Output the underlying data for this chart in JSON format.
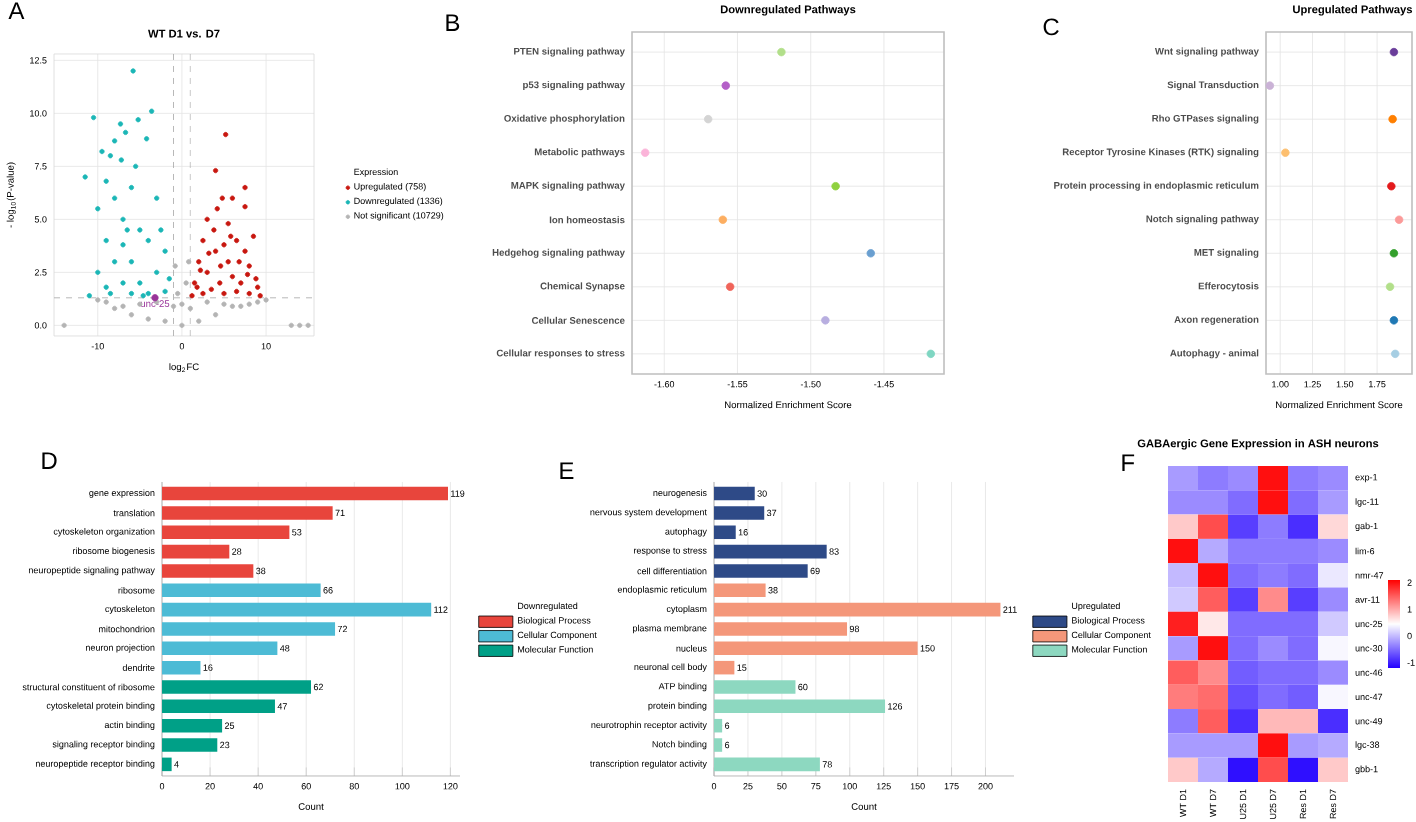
{
  "chart_data": [
    {
      "type": "scatter",
      "title": "WT D1 vs. D7",
      "xlabel": "log$_{2}$FC",
      "ylabel": "- log$_{10}$(P-value)",
      "legend_title": "Expression",
      "legend": "right",
      "marker": "circle",
      "grid": true,
      "xlim": [
        -15.2,
        15.7
      ],
      "ylim": [
        -0.5,
        12.8
      ],
      "xticks": [
        -10,
        0,
        10
      ],
      "yticks": [
        {
          "value": 0,
          "label": "0.0"
        },
        {
          "value": 2.5,
          "label": "2.5"
        },
        {
          "value": 5,
          "label": "5.0"
        },
        {
          "value": 7.5,
          "label": "7.5"
        },
        {
          "value": 10,
          "label": "10.0"
        },
        {
          "value": 12.5,
          "label": "12.5"
        }
      ],
      "ref_lines": [
        {
          "axis": "x",
          "value": -1,
          "line_style": "dashed"
        },
        {
          "axis": "x",
          "value": 1,
          "line_style": "dashed"
        },
        {
          "axis": "y",
          "value": 1.3,
          "line_style": "dashed"
        }
      ],
      "annotations": [
        "A",
        {
          "text": "unc-25",
          "x": -3.2,
          "y": 1.3
        }
      ],
      "series": [
        {
          "name": "Upregulated (758)",
          "color": "#c8170f",
          "x": [
            5.2,
            4,
            7.5,
            4.8,
            6,
            4.2,
            7.5,
            3,
            5.5,
            8.5,
            2.5,
            6.5,
            4,
            7.5,
            2,
            5.5,
            8,
            3,
            6,
            1.5,
            4.5,
            7,
            9,
            2.5,
            5,
            8,
            1.2,
            3.5,
            6.5,
            9.3,
            3.8,
            5,
            6.8,
            2.2,
            4.6,
            7.8,
            1.8,
            3.2,
            5.8,
            8.8
          ],
          "values": [
            9,
            7.3,
            6.5,
            6,
            6,
            5.5,
            5.6,
            5,
            4.8,
            4.2,
            4,
            4,
            3.5,
            3.5,
            3,
            3,
            2.8,
            2.5,
            2.3,
            2,
            2,
            2,
            1.8,
            1.5,
            1.5,
            1.5,
            1.4,
            1.7,
            1.6,
            1.4,
            4.5,
            3.8,
            3,
            2.6,
            2.8,
            2.4,
            1.8,
            3.4,
            4.2,
            2.2
          ]
        },
        {
          "name": "Downregulated (1336)",
          "color": "#1bb6b6",
          "x": [
            -5.8,
            -3.6,
            -10.5,
            -5.2,
            -7.3,
            -6.7,
            -9.5,
            -8,
            -8.5,
            -4.2,
            -11.5,
            -7.2,
            -5.5,
            -9,
            -6,
            -8,
            -10,
            -3,
            -7,
            -5,
            -9,
            -4,
            -2,
            -6,
            -8,
            -10,
            -3,
            -5,
            -7,
            -9,
            -11,
            -2,
            -4,
            -6,
            -1.5,
            -8.5,
            -4.6,
            -7,
            -2.5,
            -6.5
          ],
          "values": [
            12,
            10.1,
            9.8,
            9.7,
            9.5,
            9.1,
            8.2,
            8.7,
            8,
            8.8,
            7,
            7.8,
            7.5,
            6.8,
            6.5,
            6,
            5.5,
            6,
            5,
            4.5,
            4,
            4,
            3.5,
            3,
            3,
            2.5,
            2.5,
            2,
            2,
            1.8,
            1.4,
            1.6,
            1.5,
            1.5,
            2.2,
            1.5,
            1.4,
            3.8,
            4.5,
            4.5
          ]
        },
        {
          "name": "Not significant (10729)",
          "color": "#b4b4b4",
          "x": [
            -14,
            13,
            14,
            15,
            -8,
            -6,
            -4,
            -2,
            0,
            2,
            4,
            6,
            8,
            -1,
            1,
            -3,
            3,
            -0.5,
            0.5,
            -0.8,
            0.8,
            0,
            -10,
            10,
            -5,
            5,
            -7,
            7,
            -9,
            9
          ],
          "values": [
            0,
            0,
            0,
            0,
            0.8,
            0.5,
            0.3,
            0.2,
            0,
            0.2,
            0.5,
            0.9,
            1,
            0.9,
            0.8,
            1.1,
            1.1,
            1.5,
            2,
            2.8,
            3,
            1,
            1.2,
            1.2,
            1,
            1,
            0.9,
            0.9,
            1.1,
            1.1
          ]
        }
      ]
    },
    {
      "type": "scatter",
      "orientation": "horizontal",
      "title": "Downregulated Pathways",
      "xlabel": "Normalized Enrichment Score",
      "marker": "circle",
      "grid": true,
      "annotations": [
        "B"
      ],
      "categories": [
        "PTEN signaling pathway",
        "p53 signaling pathway",
        "Oxidative phosphorylation",
        "Metabolic pathways",
        "MAPK signaling pathway",
        "Ion homeostasis",
        "Hedgehog signaling pathway",
        "Chemical Synapse",
        "Cellular Senescence",
        "Cellular responses to stress"
      ],
      "values": [
        -1.52,
        -1.558,
        -1.57,
        -1.613,
        -1.483,
        -1.56,
        -1.459,
        -1.555,
        -1.49,
        -1.418
      ],
      "colors": [
        "#b2df8a",
        "#b460c8",
        "#d4d4d4",
        "#fbb4d9",
        "#8fd13f",
        "#fdae61",
        "#6a9fd0",
        "#f0645a",
        "#b8aee0",
        "#7fd6c2"
      ],
      "xlim": [
        -1.622,
        -1.409
      ],
      "xticks": [
        {
          "value": -1.6,
          "label": "-1.60"
        },
        {
          "value": -1.55,
          "label": "-1.55"
        },
        {
          "value": -1.5,
          "label": "-1.50"
        },
        {
          "value": -1.45,
          "label": "-1.45"
        }
      ]
    },
    {
      "type": "scatter",
      "orientation": "horizontal",
      "title": "Upregulated Pathways",
      "xlabel": "Normalized Enrichment Score",
      "marker": "circle",
      "grid": true,
      "annotations": [
        "C"
      ],
      "categories": [
        "Wnt signaling pathway",
        "Signal Transduction",
        "Rho GTPases signaling",
        "Receptor Tyrosine Kinases (RTK) signaling",
        "Protein processing in endoplasmic reticulum",
        "Notch signaling pathway",
        "MET signaling",
        "Efferocytosis",
        "Axon regeneration",
        "Autophagy - animal"
      ],
      "values": [
        1.88,
        0.92,
        1.87,
        1.04,
        1.86,
        1.92,
        1.88,
        1.85,
        1.88,
        1.89
      ],
      "colors": [
        "#6a3d9a",
        "#cab2d6",
        "#ff7f00",
        "#fdbf6f",
        "#e31a1c",
        "#fb9a99",
        "#33a02c",
        "#b2df8a",
        "#1f78b4",
        "#a6cee3"
      ],
      "xlim": [
        0.89,
        2.02
      ],
      "xticks": [
        {
          "value": 1,
          "label": "1.00"
        },
        {
          "value": 1.25,
          "label": "1.25"
        },
        {
          "value": 1.5,
          "label": "1.50"
        },
        {
          "value": 1.75,
          "label": "1.75"
        }
      ]
    },
    {
      "type": "bar",
      "orientation": "horizontal",
      "stacked": true,
      "xlabel": "Count",
      "legend_title": "Downregulated",
      "legend": "right",
      "data_labels": true,
      "grid": "x",
      "annotations": [
        "D"
      ],
      "categories": [
        "gene expression",
        "translation",
        "cytoskeleton organization",
        "ribosome biogenesis",
        "neuropeptide signaling pathway",
        "ribosome",
        "cytoskeleton",
        "mitochondrion",
        "neuron projection",
        "dendrite",
        "structural constituent of ribosome",
        "cytoskeletal protein binding",
        "actin binding",
        "signaling receptor binding",
        "neuropeptide receptor binding"
      ],
      "series": [
        {
          "name": "Biological Process",
          "color": "#e8453c",
          "values": [
            119,
            71,
            53,
            28,
            38,
            null,
            null,
            null,
            null,
            null,
            null,
            null,
            null,
            null,
            null
          ]
        },
        {
          "name": "Cellular Component",
          "color": "#4dbbd5",
          "values": [
            null,
            null,
            null,
            null,
            null,
            66,
            112,
            72,
            48,
            16,
            null,
            null,
            null,
            null,
            null
          ]
        },
        {
          "name": "Molecular Function",
          "color": "#00a087",
          "values": [
            null,
            null,
            null,
            null,
            null,
            null,
            null,
            null,
            null,
            null,
            62,
            47,
            25,
            23,
            4
          ]
        }
      ],
      "xlim": [
        0,
        124
      ],
      "xticks": [
        0,
        20,
        40,
        60,
        80,
        100,
        120
      ]
    },
    {
      "type": "bar",
      "orientation": "horizontal",
      "stacked": true,
      "xlabel": "Count",
      "legend_title": "Upregulated",
      "legend": "right",
      "data_labels": true,
      "grid": "x",
      "annotations": [
        "E"
      ],
      "categories": [
        "neurogenesis",
        "nervous system development",
        "autophagy",
        "response to stress",
        "cell differentiation",
        "endoplasmic reticulum",
        "cytoplasm",
        "plasma membrane",
        "nucleus",
        "neuronal cell body",
        "ATP binding",
        "protein binding",
        "neurotrophin receptor activity",
        "Notch binding",
        "transcription regulator activity"
      ],
      "series": [
        {
          "name": "Biological Process",
          "color": "#2e4a87",
          "values": [
            30,
            37,
            16,
            83,
            69,
            null,
            null,
            null,
            null,
            null,
            null,
            null,
            null,
            null,
            null
          ]
        },
        {
          "name": "Cellular Component",
          "color": "#f4977a",
          "values": [
            null,
            null,
            null,
            null,
            null,
            38,
            211,
            98,
            150,
            15,
            null,
            null,
            null,
            null,
            null
          ]
        },
        {
          "name": "Molecular Function",
          "color": "#8dd8c0",
          "values": [
            null,
            null,
            null,
            null,
            null,
            null,
            null,
            null,
            null,
            null,
            60,
            126,
            6,
            6,
            78
          ]
        }
      ],
      "xlim": [
        0,
        221
      ],
      "xticks": [
        0,
        25,
        50,
        75,
        100,
        125,
        150,
        175,
        200
      ]
    },
    {
      "type": "heatmap",
      "title": "GABAergic Gene Expression in ASH neurons",
      "annotations": [
        "F"
      ],
      "categories": [
        "WT D1",
        "WT D7",
        "U25 D1",
        "U25 D7",
        "Res D1",
        "Res D7"
      ],
      "y_categories": [
        "exp-1",
        "lgc-11",
        "gab-1",
        "lim-6",
        "nmr-47",
        "avr-11",
        "unc-25",
        "unc-30",
        "unc-46",
        "unc-47",
        "unc-49",
        "lgc-38",
        "gbb-1"
      ],
      "cells": [
        [
          -0.2,
          -0.4,
          -0.3,
          2,
          -0.4,
          -0.3
        ],
        [
          -0.3,
          -0.3,
          -0.5,
          2,
          -0.5,
          -0.2
        ],
        [
          0.8,
          1.6,
          -0.8,
          -0.4,
          -0.9,
          0.7
        ],
        [
          2,
          -0.1,
          -0.4,
          -0.4,
          -0.4,
          -0.3
        ],
        [
          0,
          2,
          -0.5,
          -0.4,
          -0.5,
          0.3
        ],
        [
          0.1,
          1.5,
          -0.8,
          1.2,
          -0.8,
          -0.3
        ],
        [
          1.9,
          0.6,
          -0.5,
          -0.5,
          -0.5,
          0.1
        ],
        [
          -0.2,
          2,
          -0.5,
          -0.3,
          -0.5,
          0.4
        ],
        [
          1.5,
          1.2,
          -0.6,
          -0.5,
          -0.5,
          -0.3
        ],
        [
          1.3,
          1.4,
          -0.7,
          -0.5,
          -0.6,
          0.4
        ],
        [
          -0.4,
          1.5,
          -0.9,
          0.9,
          0.9,
          -0.9
        ],
        [
          -0.2,
          -0.2,
          -0.2,
          2,
          -0.2,
          -0.1
        ],
        [
          0.8,
          -0.1,
          -1.1,
          1.6,
          -1.1,
          0.8
        ]
      ],
      "clim": [
        -1.2,
        2.1
      ],
      "cticks": [
        -1,
        0,
        1,
        2
      ]
    }
  ]
}
